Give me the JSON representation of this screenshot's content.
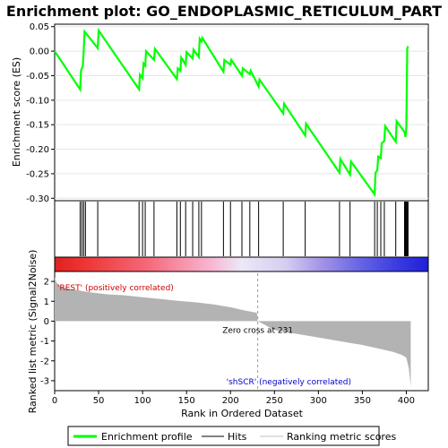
{
  "chart_data": [
    {
      "panel": "enrichment",
      "type": "line",
      "title": "Enrichment plot: GO_ENDOPLASMIC_RETICULUM_PART",
      "ylabel": "Enrichment score (ES)",
      "ylim": [
        -0.305,
        0.055
      ],
      "xlim": [
        0,
        425
      ],
      "y_ticks": [
        "0.05",
        "0.00",
        "-0.05",
        "-0.10",
        "-0.15",
        "-0.20",
        "-0.25",
        "-0.30"
      ],
      "y_tick_values": [
        0.05,
        0.0,
        -0.05,
        -0.1,
        -0.15,
        -0.2,
        -0.25,
        -0.3
      ],
      "series": [
        {
          "name": "Enrichment profile",
          "color": "#00ff00",
          "x": [
            0,
            29,
            30,
            32,
            33,
            34,
            49,
            50,
            96,
            97,
            100,
            101,
            103,
            104,
            113,
            114,
            139,
            140,
            143,
            144,
            149,
            150,
            157,
            158,
            164,
            165,
            167,
            168,
            192,
            193,
            200,
            201,
            213,
            214,
            222,
            223,
            232,
            233,
            260,
            261,
            285,
            286,
            324,
            325,
            336,
            337,
            364,
            365,
            367,
            368,
            371,
            372,
            375,
            376,
            388,
            389,
            398,
            399,
            400,
            401,
            402
          ],
          "y": [
            0.0,
            -0.078,
            -0.04,
            -0.03,
            0.0,
            0.04,
            0.006,
            0.042,
            -0.078,
            -0.048,
            -0.055,
            -0.025,
            -0.03,
            0.0,
            -0.018,
            0.005,
            -0.057,
            -0.035,
            -0.04,
            -0.013,
            -0.028,
            -0.002,
            -0.015,
            0.003,
            -0.012,
            0.025,
            0.02,
            0.027,
            -0.042,
            -0.018,
            -0.028,
            -0.018,
            -0.05,
            -0.035,
            -0.047,
            -0.04,
            -0.072,
            -0.058,
            -0.127,
            -0.107,
            -0.172,
            -0.148,
            -0.248,
            -0.22,
            -0.252,
            -0.225,
            -0.292,
            -0.248,
            -0.243,
            -0.215,
            -0.218,
            -0.188,
            -0.183,
            -0.153,
            -0.185,
            -0.143,
            -0.165,
            -0.175,
            -0.155,
            0.005,
            0.01
          ]
        }
      ],
      "grid": true
    },
    {
      "panel": "hits",
      "type": "rug",
      "hit_positions": [
        29,
        31,
        33,
        35,
        49,
        96,
        100,
        103,
        113,
        139,
        143,
        149,
        157,
        164,
        167,
        192,
        200,
        213,
        222,
        232,
        260,
        285,
        324,
        336,
        364,
        367,
        371,
        375,
        388,
        398,
        399,
        400,
        401,
        402
      ]
    },
    {
      "panel": "ranking",
      "type": "area",
      "ylabel": "Ranked list metric (Signal2Noise)",
      "xlabel": "Rank in Ordered Dataset",
      "xlim": [
        0,
        425
      ],
      "ylim": [
        -3.5,
        2.5
      ],
      "x_ticks": [
        "0",
        "50",
        "100",
        "150",
        "200",
        "250",
        "300",
        "350",
        "400"
      ],
      "x_tick_values": [
        0,
        50,
        100,
        150,
        200,
        250,
        300,
        350,
        400
      ],
      "y_ticks": [
        "2",
        "1",
        "0",
        "-1",
        "-2",
        "-3"
      ],
      "y_tick_values": [
        2,
        1,
        0,
        -1,
        -2,
        -3
      ],
      "series": [
        {
          "name": "Ranking metric scores",
          "color": "#b3b3b3",
          "x": [
            0,
            2,
            5,
            10,
            20,
            40,
            60,
            80,
            100,
            120,
            140,
            160,
            180,
            200,
            215,
            230,
            231,
            250,
            270,
            290,
            310,
            330,
            350,
            370,
            385,
            395,
            400,
            403,
            405
          ],
          "y": [
            2.2,
            1.95,
            1.8,
            1.7,
            1.6,
            1.45,
            1.35,
            1.3,
            1.2,
            1.12,
            1.02,
            0.95,
            0.85,
            0.7,
            0.55,
            0.42,
            0.0,
            -0.45,
            -0.6,
            -0.75,
            -0.9,
            -1.05,
            -1.2,
            -1.4,
            -1.55,
            -1.7,
            -1.85,
            -2.4,
            -3.3
          ]
        }
      ],
      "zero_cross_label": "Zero cross at 231",
      "positive_label": "'REST' (positively correlated)",
      "negative_label": "'shSCR' (negatively correlated)"
    }
  ],
  "legend": {
    "items": [
      {
        "label": "Enrichment profile",
        "color": "#00ff00",
        "style": "thick"
      },
      {
        "label": "Hits",
        "color": "#000000",
        "style": "thin"
      },
      {
        "label": "Ranking metric scores",
        "color": "#c0c0c0",
        "style": "thin"
      }
    ]
  },
  "colors": {
    "positive": "#ff0000",
    "negative": "#0000ff",
    "profile": "#00ff00",
    "metric": "#b3b3b3"
  }
}
